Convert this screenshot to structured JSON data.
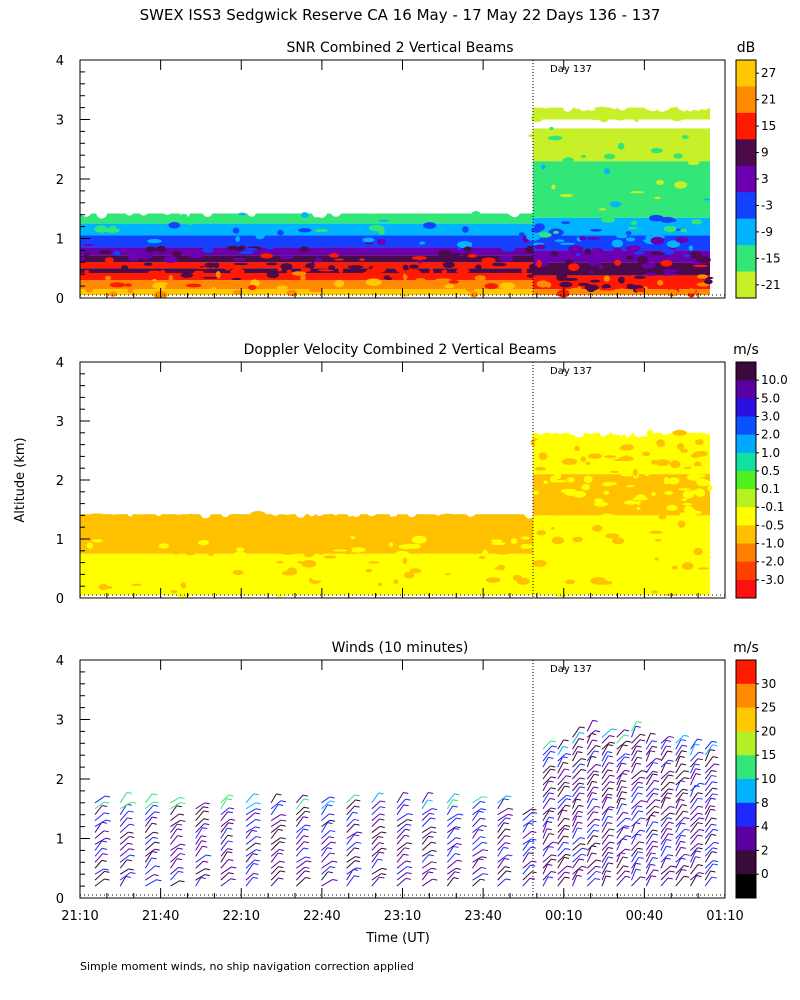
{
  "figure": {
    "title": "SWEX ISS3 Sedgwick Reserve CA  16 May - 17 May 22 Days 136 - 137",
    "ylabel": "Altitude (km)",
    "xlabel": "Time (UT)",
    "footnote": "Simple moment winds, no ship navigation correction applied",
    "day_marker_label": "Day 137"
  },
  "chart_data": [
    {
      "type": "heatmap",
      "title": "SNR Combined 2 Vertical Beams",
      "colorbar_unit": "dB",
      "x_ticks": [],
      "y_ticks": [
        "0",
        "1",
        "2",
        "3",
        "4"
      ],
      "ylim": [
        0,
        4
      ],
      "colorbar": {
        "labels": [
          "27",
          "21",
          "15",
          "9",
          "3",
          "-3",
          "-9",
          "-15",
          "-21"
        ],
        "colors": [
          "#ffc800",
          "#ff8c00",
          "#ff1a00",
          "#4b0a4b",
          "#6a00b0",
          "#1440ff",
          "#00b4ff",
          "#32e678",
          "#c8f028"
        ]
      },
      "layers_before_day137": [
        {
          "from_km": 0.05,
          "to_km": 0.15,
          "color": "#ffc800"
        },
        {
          "from_km": 0.15,
          "to_km": 0.3,
          "color": "#ff8c00"
        },
        {
          "from_km": 0.3,
          "to_km": 0.42,
          "color": "#ff1a00"
        },
        {
          "from_km": 0.42,
          "to_km": 0.5,
          "color": "#4b0a4b"
        },
        {
          "from_km": 0.5,
          "to_km": 0.6,
          "color": "#ff1a00"
        },
        {
          "from_km": 0.6,
          "to_km": 0.72,
          "color": "#4b0a4b"
        },
        {
          "from_km": 0.72,
          "to_km": 0.85,
          "color": "#6a00b0"
        },
        {
          "from_km": 0.85,
          "to_km": 1.05,
          "color": "#1440ff"
        },
        {
          "from_km": 1.05,
          "to_km": 1.25,
          "color": "#00b4ff"
        },
        {
          "from_km": 1.25,
          "to_km": 1.42,
          "color": "#32e678"
        }
      ],
      "layers_after_day137": [
        {
          "from_km": 0.05,
          "to_km": 0.15,
          "color": "#ff8c00"
        },
        {
          "from_km": 0.15,
          "to_km": 0.38,
          "color": "#ff1a00"
        },
        {
          "from_km": 0.38,
          "to_km": 0.6,
          "color": "#4b0a4b"
        },
        {
          "from_km": 0.6,
          "to_km": 0.8,
          "color": "#6a00b0"
        },
        {
          "from_km": 0.8,
          "to_km": 1.05,
          "color": "#1440ff"
        },
        {
          "from_km": 1.05,
          "to_km": 1.35,
          "color": "#00b4ff"
        },
        {
          "from_km": 1.35,
          "to_km": 2.3,
          "color": "#32e678"
        },
        {
          "from_km": 2.3,
          "to_km": 2.85,
          "color": "#c8f028"
        },
        {
          "from_km": 3.0,
          "to_km": 3.2,
          "color": "#c8f028"
        }
      ]
    },
    {
      "type": "heatmap",
      "title": "Doppler Velocity Combined 2 Vertical Beams",
      "colorbar_unit": "m/s",
      "x_ticks": [],
      "y_ticks": [
        "0",
        "1",
        "2",
        "3",
        "4"
      ],
      "ylim": [
        0,
        4
      ],
      "colorbar": {
        "labels": [
          "10.0",
          "5.0",
          "3.0",
          "2.0",
          "1.0",
          "0.5",
          "0.1",
          "-0.1",
          "-0.5",
          "-1.0",
          "-2.0",
          "-3.0"
        ],
        "colors": [
          "#3a0a3a",
          "#5a00a0",
          "#2a10e0",
          "#0a50ff",
          "#00a8ff",
          "#10e0a0",
          "#50f020",
          "#b8f020",
          "#ffff00",
          "#ffc000",
          "#ff8000",
          "#ff4000",
          "#ff1010"
        ]
      },
      "layers_before_day137": [
        {
          "from_km": 0.05,
          "to_km": 0.75,
          "color": "#ffff00"
        },
        {
          "from_km": 0.75,
          "to_km": 1.05,
          "color": "#ffc000"
        },
        {
          "from_km": 1.05,
          "to_km": 1.42,
          "color": "#ffc000"
        }
      ],
      "layers_after_day137": [
        {
          "from_km": 0.05,
          "to_km": 1.4,
          "color": "#ffff00"
        },
        {
          "from_km": 1.4,
          "to_km": 2.1,
          "color": "#ffc000"
        },
        {
          "from_km": 2.1,
          "to_km": 2.8,
          "color": "#ffff00"
        }
      ]
    },
    {
      "type": "scatter",
      "title": "Winds (10 minutes)",
      "colorbar_unit": "m/s",
      "x_ticks": [
        "21:10",
        "21:40",
        "22:10",
        "22:40",
        "23:10",
        "23:40",
        "00:10",
        "00:40",
        "01:10"
      ],
      "y_ticks": [
        "0",
        "1",
        "2",
        "3",
        "4"
      ],
      "ylim": [
        0,
        4
      ],
      "colorbar": {
        "labels": [
          "30",
          "25",
          "20",
          "15",
          "10",
          "8",
          "4",
          "2",
          "0"
        ],
        "colors": [
          "#ff1a00",
          "#ff8c00",
          "#ffc800",
          "#b4f028",
          "#32e678",
          "#00b4ff",
          "#1e28ff",
          "#5a00a0",
          "#3a0a3a",
          "#000000"
        ]
      },
      "profiles_before_day137_top_km": [
        1.7,
        1.7,
        1.7,
        1.7,
        1.6,
        1.7,
        1.7,
        1.7,
        1.7,
        1.7,
        1.7,
        1.7,
        1.7,
        1.7,
        1.7,
        1.7,
        1.7,
        1.5
      ],
      "profiles_after_day137_top_km": [
        2.6,
        2.6,
        2.8,
        2.9,
        2.8,
        2.8,
        2.9,
        2.7,
        2.7,
        2.7,
        2.6,
        2.6
      ]
    }
  ]
}
